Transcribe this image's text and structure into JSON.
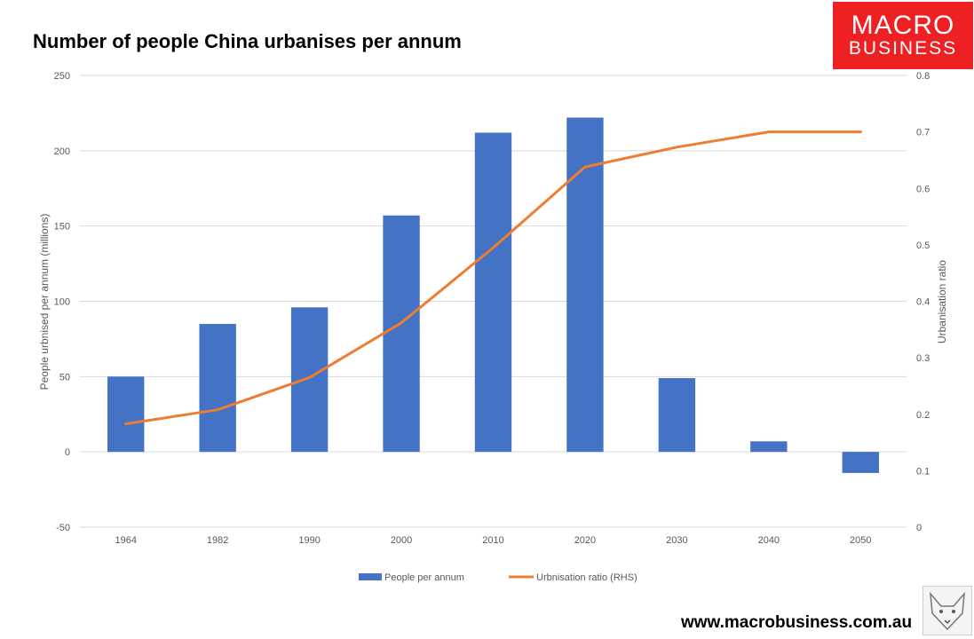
{
  "logo": {
    "line1": "MACRO",
    "line2": "BUSINESS"
  },
  "footer": {
    "url": "www.macrobusiness.com.au"
  },
  "colors": {
    "bar": "#4472c4",
    "line": "#ed7d31",
    "grid": "#d9d9d9",
    "axis_text": "#595959",
    "logo_bg": "#ee2024"
  },
  "chart_data": {
    "type": "bar",
    "title": "Number of people China urbanises per annum",
    "categories": [
      "1964",
      "1982",
      "1990",
      "2000",
      "2010",
      "2020",
      "2030",
      "2040",
      "2050"
    ],
    "series": [
      {
        "name": "People per annum",
        "type": "bar",
        "axis": "left",
        "values": [
          50,
          85,
          96,
          157,
          212,
          222,
          49,
          7,
          -14
        ]
      },
      {
        "name": "Urbnisation ratio (RHS)",
        "type": "line",
        "axis": "right",
        "values": [
          0.183,
          0.208,
          0.265,
          0.362,
          0.495,
          0.638,
          0.673,
          0.7,
          0.7
        ]
      }
    ],
    "ylabel": "People urbnised per annum (millions)",
    "y2label": "Urbanisation ratio",
    "ylim": [
      -50,
      250
    ],
    "yticks": [
      -50,
      0,
      50,
      100,
      150,
      200,
      250
    ],
    "y2lim": [
      0,
      0.8
    ],
    "y2ticks": [
      0,
      0.1,
      0.2,
      0.3,
      0.4,
      0.5,
      0.6,
      0.7,
      0.8
    ],
    "grid": true,
    "legend": "bottom"
  }
}
